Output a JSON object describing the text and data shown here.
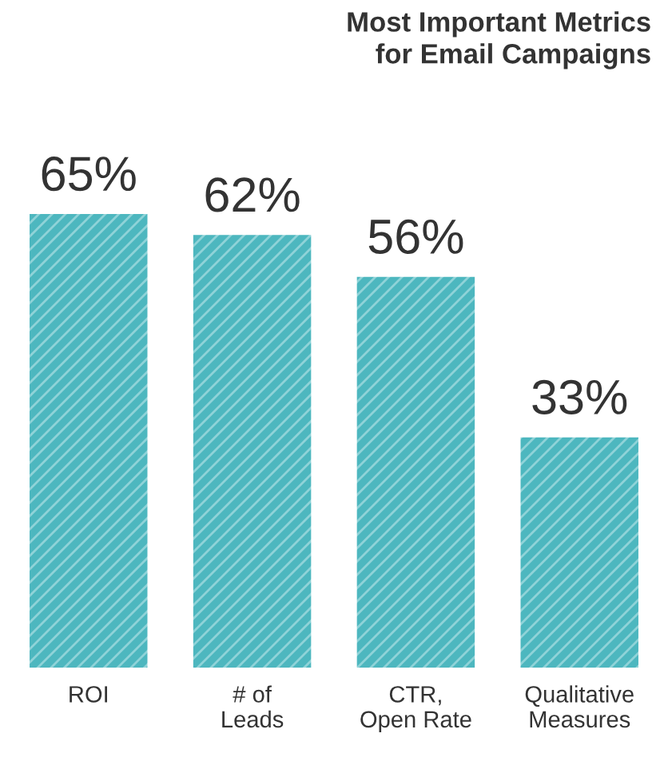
{
  "chart_data": {
    "type": "bar",
    "title": "Most Important Metrics\nfor Email Campaigns",
    "categories": [
      "ROI",
      "# of\nLeads",
      "CTR,\nOpen Rate",
      "Qualitative\nMeasures"
    ],
    "values": [
      65,
      62,
      56,
      33
    ],
    "value_labels": [
      "65%",
      "62%",
      "56%",
      "33%"
    ],
    "color": "#4db7bf",
    "grid": false,
    "legend": false
  }
}
